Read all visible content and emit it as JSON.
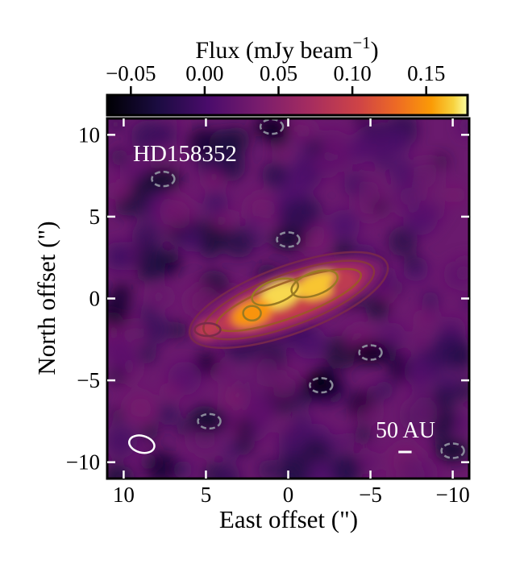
{
  "chart_data": {
    "type": "heatmap",
    "title": "",
    "xlabel": "East offset (\")",
    "ylabel": "North offset (\")",
    "xlim": [
      11,
      -11
    ],
    "ylim": [
      -11,
      11
    ],
    "xticks": [
      10,
      5,
      0,
      -5,
      -10
    ],
    "xtick_labels": [
      "10",
      "5",
      "0",
      "−5",
      "−10"
    ],
    "yticks": [
      10,
      5,
      0,
      -5,
      -10
    ],
    "ytick_labels": [
      "10",
      "5",
      "0",
      "−5",
      "−10"
    ],
    "colorbar": {
      "label": "Flux (mJy beam",
      "label_exp": "−1",
      "label_close": ")",
      "range": [
        -0.066,
        0.178
      ],
      "ticks": [
        -0.05,
        0.0,
        0.05,
        0.1,
        0.15
      ],
      "tick_labels": [
        "−0.05",
        "0.00",
        "0.05",
        "0.10",
        "0.15"
      ],
      "colormap": "inferno",
      "placement": "top"
    },
    "annotations": {
      "target": "HD158352",
      "scale_bar": "50 AU"
    },
    "scale_bar_arcsec": 0.8,
    "beam": {
      "x": 8.9,
      "y": -8.9,
      "major": 1.2,
      "minor": 0.85,
      "pa_deg": 15
    },
    "disk": {
      "center_x": 0.0,
      "center_y": 0.0,
      "pa_deg": 70
    },
    "emission_peaks": [
      {
        "x": 0.5,
        "y": 0.2,
        "flux": 0.17
      },
      {
        "x": -1.8,
        "y": 0.8,
        "flux": 0.165
      },
      {
        "x": 2.2,
        "y": -0.9,
        "flux": 0.15
      },
      {
        "x": 4.9,
        "y": -1.9,
        "flux": 0.09
      },
      {
        "x": -3.4,
        "y": 0.9,
        "flux": 0.09
      }
    ],
    "negative_holes": [
      {
        "x": -2.0,
        "y": -5.3,
        "flux": -0.06
      },
      {
        "x": -5.0,
        "y": -3.3,
        "flux": -0.05
      },
      {
        "x": 4.8,
        "y": -7.5,
        "flux": -0.04
      },
      {
        "x": 7.6,
        "y": 7.3,
        "flux": -0.045
      },
      {
        "x": 0.0,
        "y": 3.6,
        "flux": -0.04
      },
      {
        "x": -10.0,
        "y": -9.3,
        "flux": -0.04
      },
      {
        "x": 1.0,
        "y": 10.5,
        "flux": -0.05
      }
    ]
  }
}
